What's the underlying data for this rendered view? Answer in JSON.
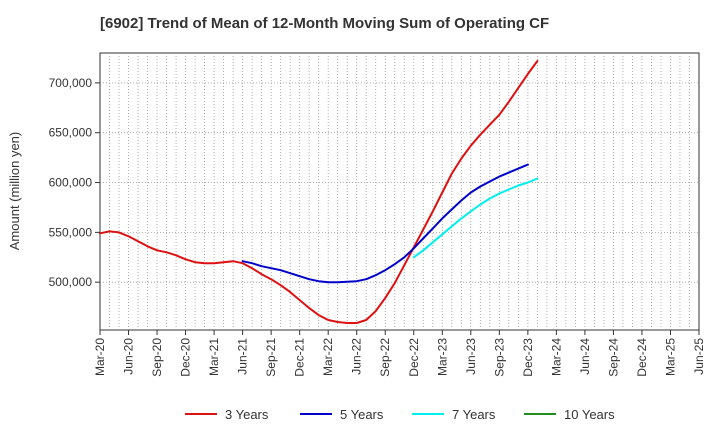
{
  "chart_data": {
    "type": "line",
    "title": "[6902]  Trend of Mean of 12-Month Moving Sum of Operating CF",
    "xlabel": "",
    "ylabel": "Amount (million yen)",
    "ylim": [
      452000,
      730000
    ],
    "y_ticks": [
      500000,
      550000,
      600000,
      650000,
      700000
    ],
    "y_tick_labels": [
      "500,000",
      "550,000",
      "600,000",
      "650,000",
      "700,000"
    ],
    "x_tick_labels": [
      "Mar-20",
      "Jun-20",
      "Sep-20",
      "Dec-20",
      "Mar-21",
      "Jun-21",
      "Sep-21",
      "Dec-21",
      "Mar-22",
      "Jun-22",
      "Sep-22",
      "Dec-22",
      "Mar-23",
      "Jun-23",
      "Sep-23",
      "Dec-23",
      "Mar-24",
      "Jun-24",
      "Sep-24",
      "Dec-24",
      "Mar-25",
      "Jun-25"
    ],
    "grid": true,
    "legend_position": "bottom",
    "series": [
      {
        "name": "3 Years",
        "color": "#dd1111",
        "start_index": 0,
        "values": [
          549000,
          551000,
          550000,
          546000,
          541000,
          536000,
          532000,
          530000,
          527000,
          523000,
          520000,
          519000,
          519000,
          520000,
          521000,
          519000,
          514000,
          508000,
          503000,
          497000,
          490000,
          482000,
          474000,
          467000,
          462000,
          460000,
          459000,
          459000,
          462000,
          471000,
          484000,
          499000,
          517000,
          535000,
          553000,
          571000,
          590000,
          609000,
          624000,
          637000,
          648000,
          658000,
          668000,
          681000,
          695000,
          709000,
          722000
        ]
      },
      {
        "name": "5 Years",
        "color": "#0000cc",
        "start_index": 15,
        "values": [
          521000,
          519000,
          516000,
          514000,
          512000,
          509000,
          506000,
          503000,
          501000,
          500000,
          500000,
          500500,
          501000,
          503000,
          507000,
          512000,
          518000,
          525000,
          534000,
          544000,
          554000,
          564000,
          573000,
          582000,
          590000,
          596000,
          601000,
          606000,
          610000,
          614000,
          618000
        ]
      },
      {
        "name": "7 Years",
        "color": "#00eeee",
        "start_index": 33,
        "values": [
          525000,
          532000,
          540000,
          548000,
          556000,
          564000,
          571000,
          578000,
          584000,
          589000,
          593000,
          597000,
          600000,
          604000
        ]
      },
      {
        "name": "10 Years",
        "color": "#228b22",
        "start_index": 0,
        "values": []
      }
    ]
  }
}
